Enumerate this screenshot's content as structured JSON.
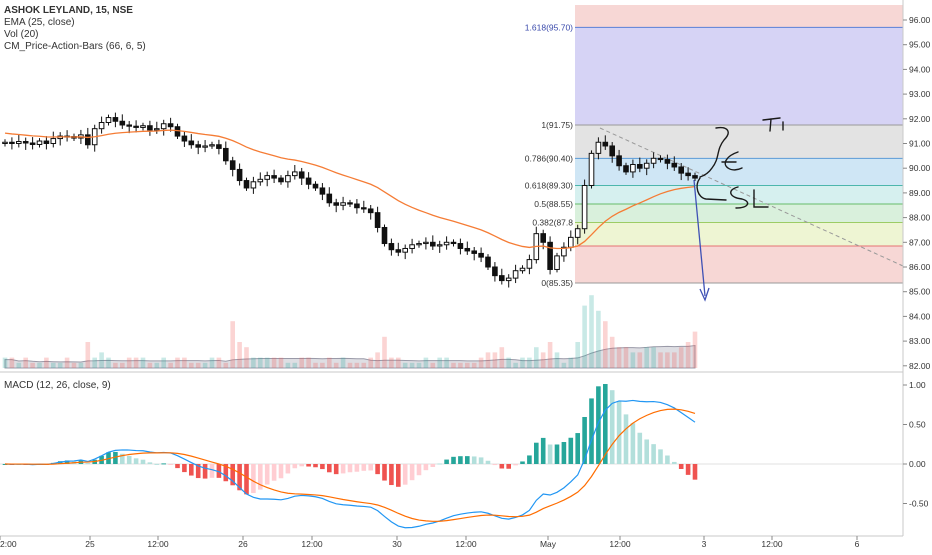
{
  "legend": {
    "symbol": "ASHOK LEYLAND, 15, NSE",
    "ema": "EMA (25, close)",
    "vol": "Vol (20)",
    "cm": "CM_Price-Action-Bars (66, 6, 5)"
  },
  "macd_label": "MACD (12, 26, close, 9)",
  "colors": {
    "up": "#26a69a",
    "down": "#ef5350",
    "ema": "#f57c35",
    "macd": "#2196f3",
    "signal": "#ff6d00",
    "fib_line": "#5b7fd6",
    "annotation": "#1a1a1a",
    "arrow": "#3f51b5"
  },
  "chart_data": [
    {
      "type": "candlestick",
      "name": "price",
      "y_axis": {
        "ticks": [
          "96.00",
          "95.00",
          "94.00",
          "93.00",
          "92.00",
          "91.00",
          "90.00",
          "89.00",
          "88.00",
          "87.00",
          "86.00",
          "85.00",
          "84.00",
          "83.00",
          "82.00"
        ],
        "range": [
          82,
          96.5
        ]
      },
      "x_axis": {
        "ticks": [
          "2:00",
          "25",
          "12:00",
          "26",
          "12:00",
          "30",
          "12:00",
          "May",
          "12:00",
          "3",
          "12:00",
          "6"
        ]
      },
      "ema_label": "EMA (25, close)",
      "closes": [
        91.05,
        91.0,
        91.08,
        91.02,
        90.96,
        91.1,
        91.0,
        91.2,
        91.3,
        91.28,
        91.22,
        91.35,
        90.95,
        91.6,
        91.85,
        92.05,
        91.9,
        91.75,
        91.7,
        91.65,
        91.72,
        91.55,
        91.6,
        91.8,
        91.68,
        91.3,
        91.1,
        90.95,
        90.85,
        90.9,
        90.95,
        90.8,
        90.3,
        89.95,
        89.5,
        89.2,
        89.45,
        89.55,
        89.7,
        89.6,
        89.45,
        89.7,
        89.85,
        89.6,
        89.35,
        89.2,
        88.95,
        88.6,
        88.5,
        88.6,
        88.55,
        88.4,
        88.35,
        88.2,
        87.6,
        86.95,
        86.7,
        86.6,
        86.75,
        86.9,
        86.95,
        87.0,
        86.85,
        86.9,
        87.0,
        86.95,
        86.75,
        86.65,
        86.55,
        86.4,
        86.0,
        85.65,
        85.45,
        85.55,
        85.85,
        85.95,
        86.3,
        87.35,
        87.0,
        85.9,
        86.45,
        86.8,
        87.2,
        87.55,
        89.3,
        90.6,
        91.05,
        90.9,
        90.5,
        90.1,
        89.85,
        90.15,
        90.0,
        90.2,
        90.4,
        90.35,
        90.2,
        90.05,
        89.8,
        89.7,
        89.6
      ],
      "fib_levels": [
        {
          "ratio": "1.618",
          "value": 95.7,
          "label": "1.618(95.70)"
        },
        {
          "ratio": "1",
          "value": 91.75,
          "label": "1(91.75)"
        },
        {
          "ratio": "0.786",
          "value": 90.4,
          "label": "0.786(90.40)"
        },
        {
          "ratio": "0.618",
          "value": 89.3,
          "label": "0.618(89.30)"
        },
        {
          "ratio": "0.5",
          "value": 88.55,
          "label": "0.5(88.55)"
        },
        {
          "ratio": "0.382",
          "value": 87.8,
          "label": "0.382(87.8"
        },
        {
          "ratio": "0.236",
          "value": 86.85,
          "label": ""
        },
        {
          "ratio": "0",
          "value": 85.35,
          "label": "0(85.35)"
        }
      ],
      "annotations": [
        "T1",
        "E",
        "SL"
      ]
    },
    {
      "type": "bar",
      "name": "Vol (20)",
      "values": [
        2,
        2,
        1,
        2,
        1,
        1,
        2,
        1,
        1,
        2,
        1,
        1,
        5,
        2,
        3,
        2,
        1,
        1,
        2,
        2,
        2,
        1,
        1,
        2,
        1,
        2,
        2,
        1,
        1,
        1,
        2,
        2,
        1,
        9,
        5,
        4,
        2,
        2,
        2,
        2,
        2,
        1,
        1,
        2,
        2,
        1,
        1,
        2,
        1,
        2,
        1,
        1,
        1,
        2,
        3,
        6,
        2,
        2,
        1,
        1,
        1,
        2,
        1,
        2,
        2,
        1,
        1,
        1,
        1,
        2,
        3,
        3,
        4,
        2,
        1,
        2,
        2,
        4,
        3,
        5,
        3,
        1,
        2,
        5,
        12,
        14,
        11,
        9,
        6,
        4,
        4,
        3,
        3,
        4,
        4,
        3,
        3,
        3,
        4,
        5,
        7
      ]
    },
    {
      "type": "line+bar",
      "name": "MACD (12, 26, close, 9)",
      "y_axis": {
        "ticks": [
          "1.00",
          "0.50",
          "0.00",
          "-0.50"
        ],
        "range": [
          -0.75,
          1.15
        ]
      }
    }
  ]
}
